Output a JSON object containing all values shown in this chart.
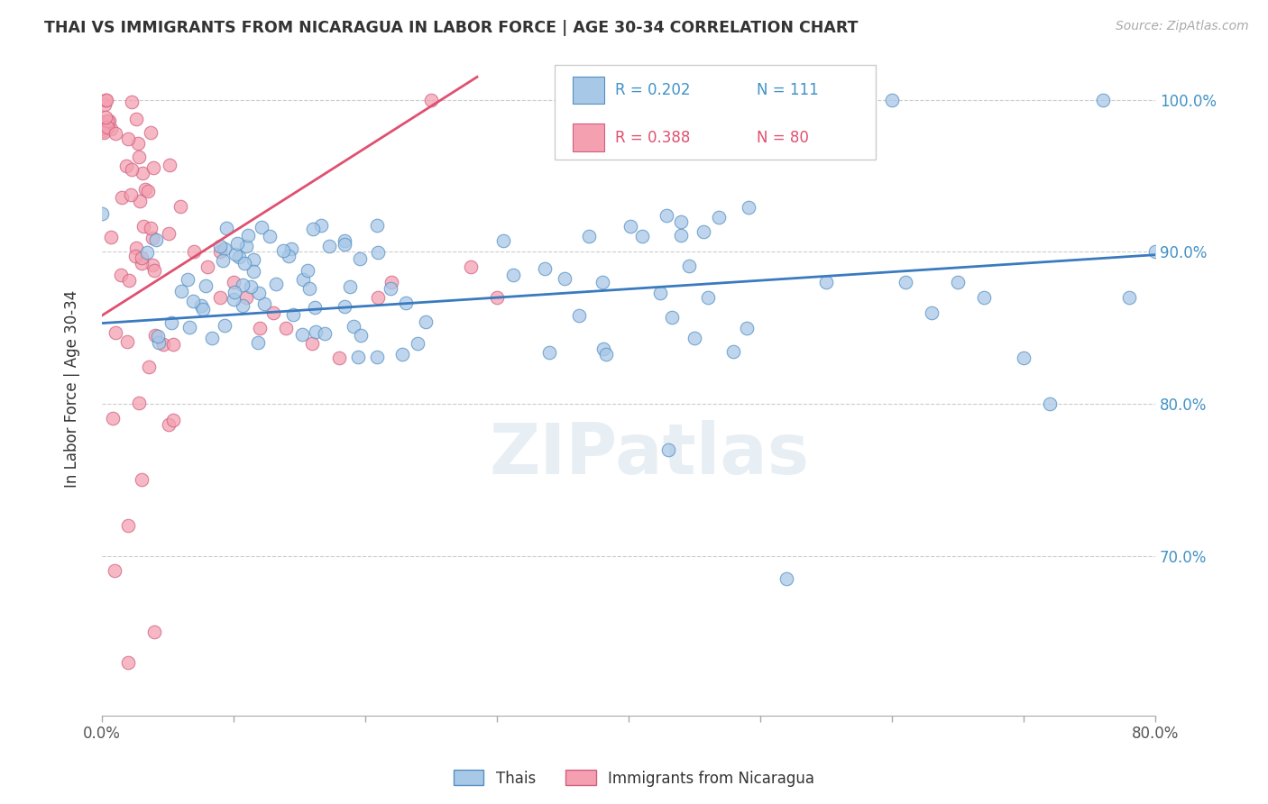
{
  "title": "THAI VS IMMIGRANTS FROM NICARAGUA IN LABOR FORCE | AGE 30-34 CORRELATION CHART",
  "source": "Source: ZipAtlas.com",
  "ylabel": "In Labor Force | Age 30-34",
  "watermark": "ZIPatlas",
  "legend_blue_r": "R = 0.202",
  "legend_blue_n": "N = 111",
  "legend_pink_r": "R = 0.388",
  "legend_pink_n": "N = 80",
  "legend_label_blue": "Thais",
  "legend_label_pink": "Immigrants from Nicaragua",
  "blue_color": "#a8c8e8",
  "pink_color": "#f4a0b0",
  "blue_edge_color": "#5590c0",
  "pink_edge_color": "#d06080",
  "blue_line_color": "#3a7abf",
  "pink_line_color": "#e05070",
  "r_blue_color": "#4292c6",
  "r_pink_color": "#e05070",
  "xmin": 0.0,
  "xmax": 0.8,
  "ymin": 0.595,
  "ymax": 1.025,
  "yticks": [
    0.7,
    0.8,
    0.9,
    1.0
  ],
  "ytick_labels": [
    "70.0%",
    "80.0%",
    "90.0%",
    "100.0%"
  ],
  "xticks": [
    0.0,
    0.1,
    0.2,
    0.3,
    0.4,
    0.5,
    0.6,
    0.7,
    0.8
  ],
  "blue_trend_x": [
    0.0,
    0.8
  ],
  "blue_trend_y": [
    0.853,
    0.898
  ],
  "pink_trend_x": [
    0.0,
    0.285
  ],
  "pink_trend_y": [
    0.858,
    1.015
  ]
}
